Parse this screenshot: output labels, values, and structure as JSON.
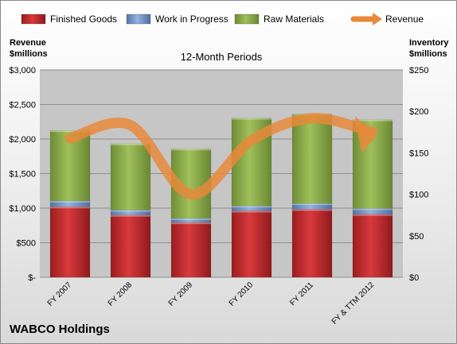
{
  "company": "WABCO Holdings",
  "chart_data": {
    "type": "bar",
    "stacked": true,
    "title": "12-Month Periods",
    "categories": [
      "FY 2007",
      "FY 2008",
      "FY 2009",
      "FY 2010",
      "FY 2011",
      "FY & TTM 2012"
    ],
    "left_axis": {
      "label_line1": "Revenue",
      "label_line2": "$millions",
      "ylim": [
        0,
        3000
      ],
      "ticks": [
        0,
        500,
        1000,
        1500,
        2000,
        2500,
        3000
      ],
      "tick_labels": [
        "$-",
        "$500",
        "$1,000",
        "$1,500",
        "$2,000",
        "$2,500",
        "$3,000"
      ]
    },
    "right_axis": {
      "label_line1": "Inventory",
      "label_line2": "$millions",
      "ylim": [
        0,
        250
      ],
      "ticks": [
        0,
        50,
        100,
        150,
        200,
        250
      ],
      "tick_labels": [
        "$0",
        "$50",
        "$100",
        "$150",
        "$200",
        "$250"
      ]
    },
    "series": [
      {
        "name": "Finished Goods",
        "axis": "right",
        "color": "#c0282a",
        "values": [
          85,
          75,
          66,
          80,
          82,
          76
        ]
      },
      {
        "name": "Work in Progress",
        "axis": "right",
        "color": "#6f93c9",
        "values": [
          7,
          6,
          5,
          6,
          7,
          7
        ]
      },
      {
        "name": "Raw Materials",
        "axis": "right",
        "color": "#8fb04e",
        "values": [
          85,
          80,
          84,
          106,
          108,
          107
        ]
      },
      {
        "name": "Revenue",
        "axis": "left",
        "type": "line",
        "color": "#e8883a",
        "values": [
          2010,
          2200,
          1200,
          1980,
          2300,
          2100
        ]
      }
    ],
    "grid": true,
    "legend_position": "top"
  }
}
